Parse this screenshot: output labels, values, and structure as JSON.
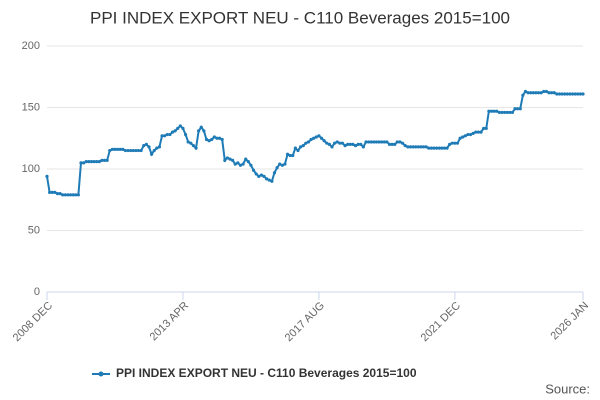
{
  "chart_data": {
    "type": "line",
    "title": "PPI INDEX EXPORT NEU - C110 Beverages 2015=100",
    "source": "Source:",
    "categories": [
      "2008 DEC",
      null,
      null,
      null,
      null,
      null,
      null,
      null,
      null,
      null,
      null,
      null,
      null,
      null,
      null,
      null,
      null,
      null,
      null,
      null,
      null,
      null,
      null,
      null,
      null,
      null,
      null,
      null,
      null,
      null,
      null,
      null,
      null,
      null,
      null,
      null,
      null,
      null,
      null,
      null,
      null,
      null,
      null,
      null,
      null,
      null,
      null,
      null,
      null,
      null,
      null,
      null,
      "2013 APR",
      null,
      null,
      null,
      null,
      null,
      null,
      null,
      null,
      null,
      null,
      null,
      null,
      null,
      null,
      null,
      null,
      null,
      null,
      null,
      null,
      null,
      null,
      null,
      null,
      null,
      null,
      null,
      null,
      null,
      null,
      null,
      null,
      null,
      null,
      null,
      null,
      null,
      null,
      null,
      null,
      null,
      null,
      null,
      null,
      null,
      null,
      null,
      null,
      null,
      null,
      null,
      "2017 AUG",
      null,
      null,
      null,
      null,
      null,
      null,
      null,
      null,
      null,
      null,
      null,
      null,
      null,
      null,
      null,
      null,
      null,
      null,
      null,
      null,
      null,
      null,
      null,
      null,
      null,
      null,
      null,
      null,
      null,
      null,
      null,
      null,
      null,
      null,
      null,
      null,
      null,
      null,
      null,
      null,
      null,
      null,
      null,
      null,
      null,
      null,
      null,
      null,
      null,
      null,
      null,
      "2021 DEC",
      null,
      null,
      null,
      null,
      null,
      null,
      null,
      null,
      null,
      null,
      null,
      null,
      null,
      null,
      null,
      null,
      null,
      null,
      null,
      null,
      null,
      null,
      null,
      null,
      null,
      null,
      null,
      null,
      null,
      null,
      null,
      null,
      null,
      null,
      null,
      null,
      null,
      null,
      null,
      null,
      null,
      null,
      null,
      null,
      null,
      null,
      null,
      null,
      "2026 JAN"
    ],
    "series": [
      {
        "name": "PPI INDEX EXPORT NEU - C110 Beverages 2015=100",
        "color": "#1f7bb6",
        "values": [
          94,
          81,
          81,
          81,
          80,
          80,
          79,
          79,
          79,
          79,
          79,
          79,
          79,
          105,
          105,
          106,
          106,
          106,
          106,
          106,
          106,
          107,
          107,
          107,
          115,
          116,
          116,
          116,
          116,
          116,
          115,
          115,
          115,
          115,
          115,
          115,
          115,
          119,
          120,
          118,
          112,
          115,
          117,
          118,
          127,
          127,
          128,
          128,
          130,
          131,
          133,
          135,
          133,
          128,
          122,
          121,
          119,
          117,
          131,
          134,
          131,
          124,
          123,
          124,
          126,
          125,
          125,
          124,
          107,
          109,
          108,
          107,
          104,
          105,
          103,
          104,
          108,
          106,
          103,
          99,
          96,
          94,
          95,
          94,
          92,
          91,
          90,
          97,
          101,
          104,
          103,
          104,
          112,
          111,
          111,
          117,
          115,
          118,
          119,
          121,
          122,
          124,
          125,
          126,
          127,
          125,
          123,
          121,
          120,
          118,
          121,
          122,
          121,
          121,
          119,
          120,
          120,
          120,
          119,
          120,
          120,
          118,
          122,
          122,
          122,
          122,
          122,
          122,
          122,
          122,
          122,
          120,
          120,
          120,
          122,
          122,
          121,
          119,
          118,
          118,
          118,
          118,
          118,
          118,
          118,
          118,
          117,
          117,
          117,
          117,
          117,
          117,
          117,
          117,
          120,
          121,
          121,
          121,
          125,
          126,
          127,
          128,
          128,
          129,
          130,
          130,
          130,
          133,
          133,
          147,
          147,
          147,
          147,
          146,
          146,
          146,
          146,
          146,
          146,
          149,
          149,
          149,
          160,
          163,
          162,
          162,
          162,
          162,
          162,
          162,
          163,
          163,
          162,
          162,
          162,
          161,
          161,
          161,
          161,
          161,
          161,
          161,
          161,
          161,
          161,
          161
        ]
      }
    ],
    "ylim": [
      0,
      200
    ],
    "yticks": [
      0,
      50,
      100,
      150,
      200
    ],
    "grid": true,
    "legend": "bottom"
  }
}
